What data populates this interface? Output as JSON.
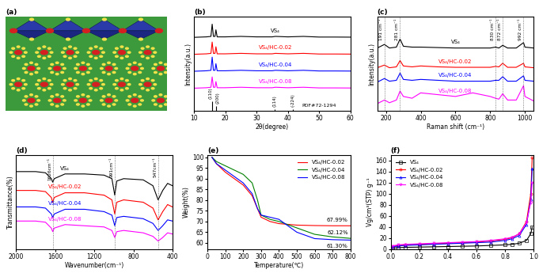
{
  "chart_data": [
    {
      "type": "diagram",
      "title": "(a)"
    },
    {
      "type": "line",
      "title": "(b)",
      "xlabel": "2θ(degree)",
      "ylabel": "Intensity(a.u.)",
      "xlim": [
        10,
        60
      ],
      "xticks": [
        10,
        20,
        30,
        40,
        50,
        60
      ],
      "ylim": [
        0,
        100
      ],
      "yticks": [],
      "tick_labels": "x",
      "series": [
        {
          "name": "VS₄",
          "color": "black",
          "x": [
            10,
            14,
            15.4,
            15.8,
            16.2,
            16.7,
            17.0,
            17.4,
            20,
            25,
            30,
            35,
            36,
            40,
            45,
            50,
            55,
            60
          ],
          "values": [
            78,
            78.5,
            79,
            92,
            79,
            79,
            86,
            78.5,
            78.5,
            79,
            78.5,
            78.5,
            79,
            78.5,
            79,
            78.3,
            78.3,
            78.2
          ]
        },
        {
          "name": "VS₄/HC-0.02",
          "color": "red",
          "x": [
            10,
            14,
            15.4,
            15.8,
            16.2,
            16.7,
            17.0,
            17.4,
            20,
            25,
            30,
            35,
            36,
            40,
            45,
            50,
            55,
            60
          ],
          "values": [
            60,
            60.5,
            61,
            73,
            61,
            61,
            68,
            60.5,
            60.5,
            61,
            60.5,
            60.5,
            61,
            60.5,
            61,
            60.3,
            60.3,
            60.2
          ]
        },
        {
          "name": "VS₄/HC-0.04",
          "color": "blue",
          "x": [
            10,
            14,
            15.4,
            15.8,
            16.2,
            16.7,
            17.0,
            17.4,
            20,
            25,
            30,
            35,
            36,
            40,
            45,
            50,
            55,
            60
          ],
          "values": [
            42,
            42.5,
            43,
            57,
            43,
            43,
            50,
            42.5,
            42.5,
            43,
            42.5,
            42.5,
            43,
            42.5,
            43,
            42.3,
            42.3,
            42.2
          ]
        },
        {
          "name": "VS₄/HC-0.08",
          "color": "magenta",
          "x": [
            10,
            14,
            15.4,
            15.8,
            16.2,
            16.7,
            17.0,
            17.4,
            20,
            25,
            30,
            35,
            36,
            40,
            45,
            50,
            55,
            60
          ],
          "values": [
            24,
            24.5,
            25,
            36,
            25,
            25,
            31,
            24.5,
            24.5,
            25,
            24.5,
            24.5,
            25,
            24.5,
            25,
            24.3,
            24.3,
            24.2
          ]
        },
        {
          "name": "PDF#72-1294",
          "type": "sticks",
          "color": "black",
          "x": [
            15.8,
            17.0,
            35.9,
            41.7
          ],
          "values": [
            10,
            5,
            2,
            2
          ]
        }
      ],
      "annotations": [
        {
          "text": "(110)",
          "x": 15.8
        },
        {
          "text": "(200)",
          "x": 17.0
        },
        {
          "text": "(114)",
          "x": 35.9
        },
        {
          "text": "(-224)",
          "x": 41.7
        }
      ]
    },
    {
      "type": "line",
      "title": "(c)",
      "xlabel": "Raman shift (cm⁻¹)",
      "ylabel": "Intensity(a.u.)",
      "xlim": [
        150,
        1050
      ],
      "xticks": [
        200,
        400,
        600,
        800,
        1000
      ],
      "ylim": [
        10,
        115
      ],
      "yticks": [],
      "tick_labels": "x",
      "series": [
        {
          "name": "VS₄",
          "color": "black",
          "x": [
            150,
            191,
            220,
            260,
            281,
            300,
            350,
            400,
            500,
            600,
            700,
            800,
            830,
            850,
            872,
            900,
            950,
            992,
            1000,
            1050
          ],
          "values": [
            80,
            84,
            80,
            81,
            90,
            82,
            81,
            81,
            80.5,
            80,
            80,
            80,
            81,
            80,
            83,
            80,
            80,
            86,
            81,
            80
          ]
        },
        {
          "name": "VS₄/HC-0.02",
          "color": "red",
          "x": [
            150,
            191,
            220,
            260,
            281,
            300,
            350,
            400,
            500,
            600,
            700,
            800,
            830,
            850,
            872,
            900,
            950,
            992,
            1000,
            1050
          ],
          "values": [
            58,
            61,
            58,
            59,
            66,
            60,
            59,
            60,
            59,
            58.5,
            58.5,
            58.5,
            59.5,
            59,
            63,
            58.5,
            58.5,
            63,
            59,
            58
          ]
        },
        {
          "name": "VS₄/HC-0.04",
          "color": "blue",
          "x": [
            150,
            191,
            220,
            260,
            281,
            300,
            350,
            400,
            500,
            600,
            700,
            800,
            830,
            850,
            872,
            900,
            950,
            992,
            1000,
            1050
          ],
          "values": [
            42,
            46,
            43,
            44,
            52,
            45,
            44,
            45,
            44,
            43,
            43,
            43,
            44,
            44,
            48,
            43,
            43,
            49,
            44,
            43
          ]
        },
        {
          "name": "VS₄/HC-0.08",
          "color": "magenta",
          "x": [
            150,
            191,
            220,
            260,
            281,
            300,
            350,
            400,
            500,
            600,
            700,
            800,
            830,
            850,
            872,
            900,
            950,
            992,
            1000,
            1050
          ],
          "values": [
            18,
            22,
            19,
            22,
            32,
            26,
            24,
            30,
            28,
            26,
            30,
            26,
            24,
            23,
            29,
            22,
            22,
            38,
            26,
            21
          ]
        }
      ],
      "annotations": [
        {
          "text": "191 cm⁻¹",
          "x": 191
        },
        {
          "text": "281 cm⁻¹",
          "x": 281
        },
        {
          "text": "830 cm⁻¹",
          "x": 830
        },
        {
          "text": "872 cm⁻¹",
          "x": 872
        },
        {
          "text": "992 cm⁻¹",
          "x": 992
        }
      ]
    },
    {
      "type": "line",
      "title": "(d)",
      "xlabel": "Wavenumber(cm⁻¹)",
      "ylabel": "Transmittance(%)",
      "xlim": [
        2000,
        400
      ],
      "xticks": [
        2000,
        1600,
        1200,
        800,
        400
      ],
      "ylim": [
        20,
        100
      ],
      "yticks": [],
      "tick_labels": "x",
      "series": [
        {
          "name": "VS₄",
          "color": "black",
          "x": [
            2000,
            1800,
            1700,
            1640,
            1626,
            1610,
            1500,
            1300,
            1100,
            1020,
            991,
            970,
            900,
            700,
            600,
            547,
            500,
            450,
            400
          ],
          "values": [
            86,
            86,
            85,
            80,
            77,
            80,
            84,
            84,
            83,
            80,
            66,
            78,
            80,
            79,
            74,
            62,
            70,
            76,
            74
          ]
        },
        {
          "name": "VS₄/HC-0.02",
          "color": "red",
          "x": [
            2000,
            1800,
            1700,
            1640,
            1626,
            1610,
            1500,
            1300,
            1100,
            1020,
            991,
            970,
            900,
            700,
            600,
            547,
            500,
            450,
            400
          ],
          "values": [
            70,
            70,
            69,
            64,
            60,
            64,
            68,
            68,
            66,
            62,
            50,
            60,
            62,
            60,
            55,
            45,
            52,
            58,
            56
          ]
        },
        {
          "name": "VS₄/HC-0.04",
          "color": "blue",
          "x": [
            2000,
            1800,
            1700,
            1640,
            1626,
            1610,
            1500,
            1300,
            1100,
            1020,
            991,
            970,
            900,
            700,
            600,
            547,
            500,
            450,
            400
          ],
          "values": [
            56,
            56,
            55,
            50,
            47,
            50,
            54,
            54,
            52,
            49,
            40,
            47,
            48,
            46,
            42,
            36,
            40,
            45,
            44
          ]
        },
        {
          "name": "VS₄/HC-0.08",
          "color": "magenta",
          "x": [
            2000,
            1800,
            1700,
            1640,
            1626,
            1610,
            1500,
            1300,
            1100,
            1020,
            991,
            970,
            900,
            700,
            600,
            547,
            500,
            450,
            400
          ],
          "values": [
            44,
            44,
            43,
            38,
            35,
            38,
            41,
            40,
            39,
            36,
            30,
            35,
            36,
            34,
            31,
            27,
            30,
            34,
            33
          ]
        }
      ],
      "annotations": [
        {
          "text": "1626cm⁻¹",
          "x": 1626
        },
        {
          "text": "991cm⁻¹",
          "x": 991
        },
        {
          "text": "547cm⁻¹",
          "x": 547
        }
      ]
    },
    {
      "type": "line",
      "title": "(e)",
      "xlabel": "Temperature(℃)",
      "ylabel": "Weight(%)",
      "xlim": [
        0,
        800
      ],
      "xticks": [
        0,
        100,
        200,
        300,
        400,
        500,
        600,
        700,
        800
      ],
      "ylim": [
        57,
        101
      ],
      "yticks": [
        60,
        65,
        70,
        75,
        80,
        85,
        90,
        95,
        100
      ],
      "legend": "upper right",
      "series": [
        {
          "name": "VS₄/HC-0.02",
          "color": "red",
          "x": [
            25,
            50,
            100,
            150,
            200,
            250,
            280,
            300,
            350,
            400,
            500,
            600,
            700,
            800
          ],
          "values": [
            100,
            97,
            93,
            90,
            87,
            82,
            76,
            72,
            70,
            69,
            68.3,
            68.1,
            68.0,
            67.99
          ]
        },
        {
          "name": "VS₄/HC-0.04",
          "color": "green",
          "x": [
            25,
            50,
            100,
            150,
            200,
            250,
            280,
            300,
            350,
            400,
            500,
            600,
            700,
            800
          ],
          "values": [
            100,
            98,
            96,
            94,
            92,
            88,
            80,
            73,
            71,
            70,
            67,
            64,
            62.8,
            62.12
          ]
        },
        {
          "name": "VS₄/HC-0.08",
          "color": "blue",
          "x": [
            25,
            50,
            100,
            150,
            200,
            250,
            280,
            300,
            350,
            400,
            500,
            600,
            700,
            800
          ],
          "values": [
            100,
            97,
            94,
            91,
            88,
            83,
            76,
            73,
            72,
            71,
            65,
            62,
            61.5,
            61.3
          ]
        }
      ],
      "annotations": [
        {
          "text": "67.99%",
          "x": 800,
          "y": 67.99
        },
        {
          "text": "62.12%",
          "x": 800,
          "y": 62.12
        },
        {
          "text": "61.30%",
          "x": 800,
          "y": 61.3
        }
      ]
    },
    {
      "type": "line",
      "title": "(f)",
      "ylabel": "Vg/cm³(STP) g⁻¹",
      "xlim": [
        0,
        1.0
      ],
      "xticks": [
        {
          "value": 0,
          "label": "0.0"
        },
        0.2,
        0.4,
        0.6,
        0.8,
        {
          "value": 1.0,
          "label": "1.0"
        }
      ],
      "ylim": [
        0,
        170
      ],
      "yticks": [
        0,
        20,
        40,
        60,
        80,
        100,
        120,
        140,
        160
      ],
      "legend": "upper left",
      "series": [
        {
          "name": "VS₄",
          "color": "black",
          "marker": "square",
          "x": [
            0.01,
            0.05,
            0.1,
            0.2,
            0.3,
            0.4,
            0.5,
            0.6,
            0.7,
            0.8,
            0.85,
            0.9,
            0.95,
            0.98,
            0.99
          ],
          "values": [
            2,
            3,
            3.5,
            4,
            4.5,
            5,
            5.5,
            6,
            7,
            8,
            9,
            11,
            16,
            28,
            40
          ]
        },
        {
          "name": "VS₄/HC-0.02",
          "color": "red",
          "marker": "circle",
          "x": [
            0.01,
            0.05,
            0.1,
            0.2,
            0.3,
            0.4,
            0.5,
            0.6,
            0.7,
            0.8,
            0.85,
            0.9,
            0.95,
            0.98,
            0.99
          ],
          "values": [
            5,
            7,
            8,
            9,
            10,
            11,
            12,
            13,
            15,
            18,
            21,
            28,
            50,
            100,
            165
          ]
        },
        {
          "name": "VS₄/HC-0.04",
          "color": "blue",
          "marker": "triangle",
          "x": [
            0.01,
            0.05,
            0.1,
            0.2,
            0.3,
            0.4,
            0.5,
            0.6,
            0.7,
            0.8,
            0.85,
            0.9,
            0.95,
            0.98,
            0.99
          ],
          "values": [
            4,
            6,
            7,
            8,
            9,
            10,
            11,
            12,
            13,
            16,
            19,
            25,
            45,
            90,
            145
          ]
        },
        {
          "name": "VS₄/HC-0.08",
          "color": "magenta",
          "marker": "triangle_down",
          "x": [
            0.01,
            0.05,
            0.1,
            0.2,
            0.3,
            0.4,
            0.5,
            0.6,
            0.7,
            0.8,
            0.85,
            0.9,
            0.95,
            0.98,
            0.99
          ],
          "values": [
            6,
            8,
            9,
            10,
            11,
            12,
            13,
            14,
            16,
            19,
            22,
            28,
            48,
            85,
            120
          ]
        }
      ]
    }
  ]
}
